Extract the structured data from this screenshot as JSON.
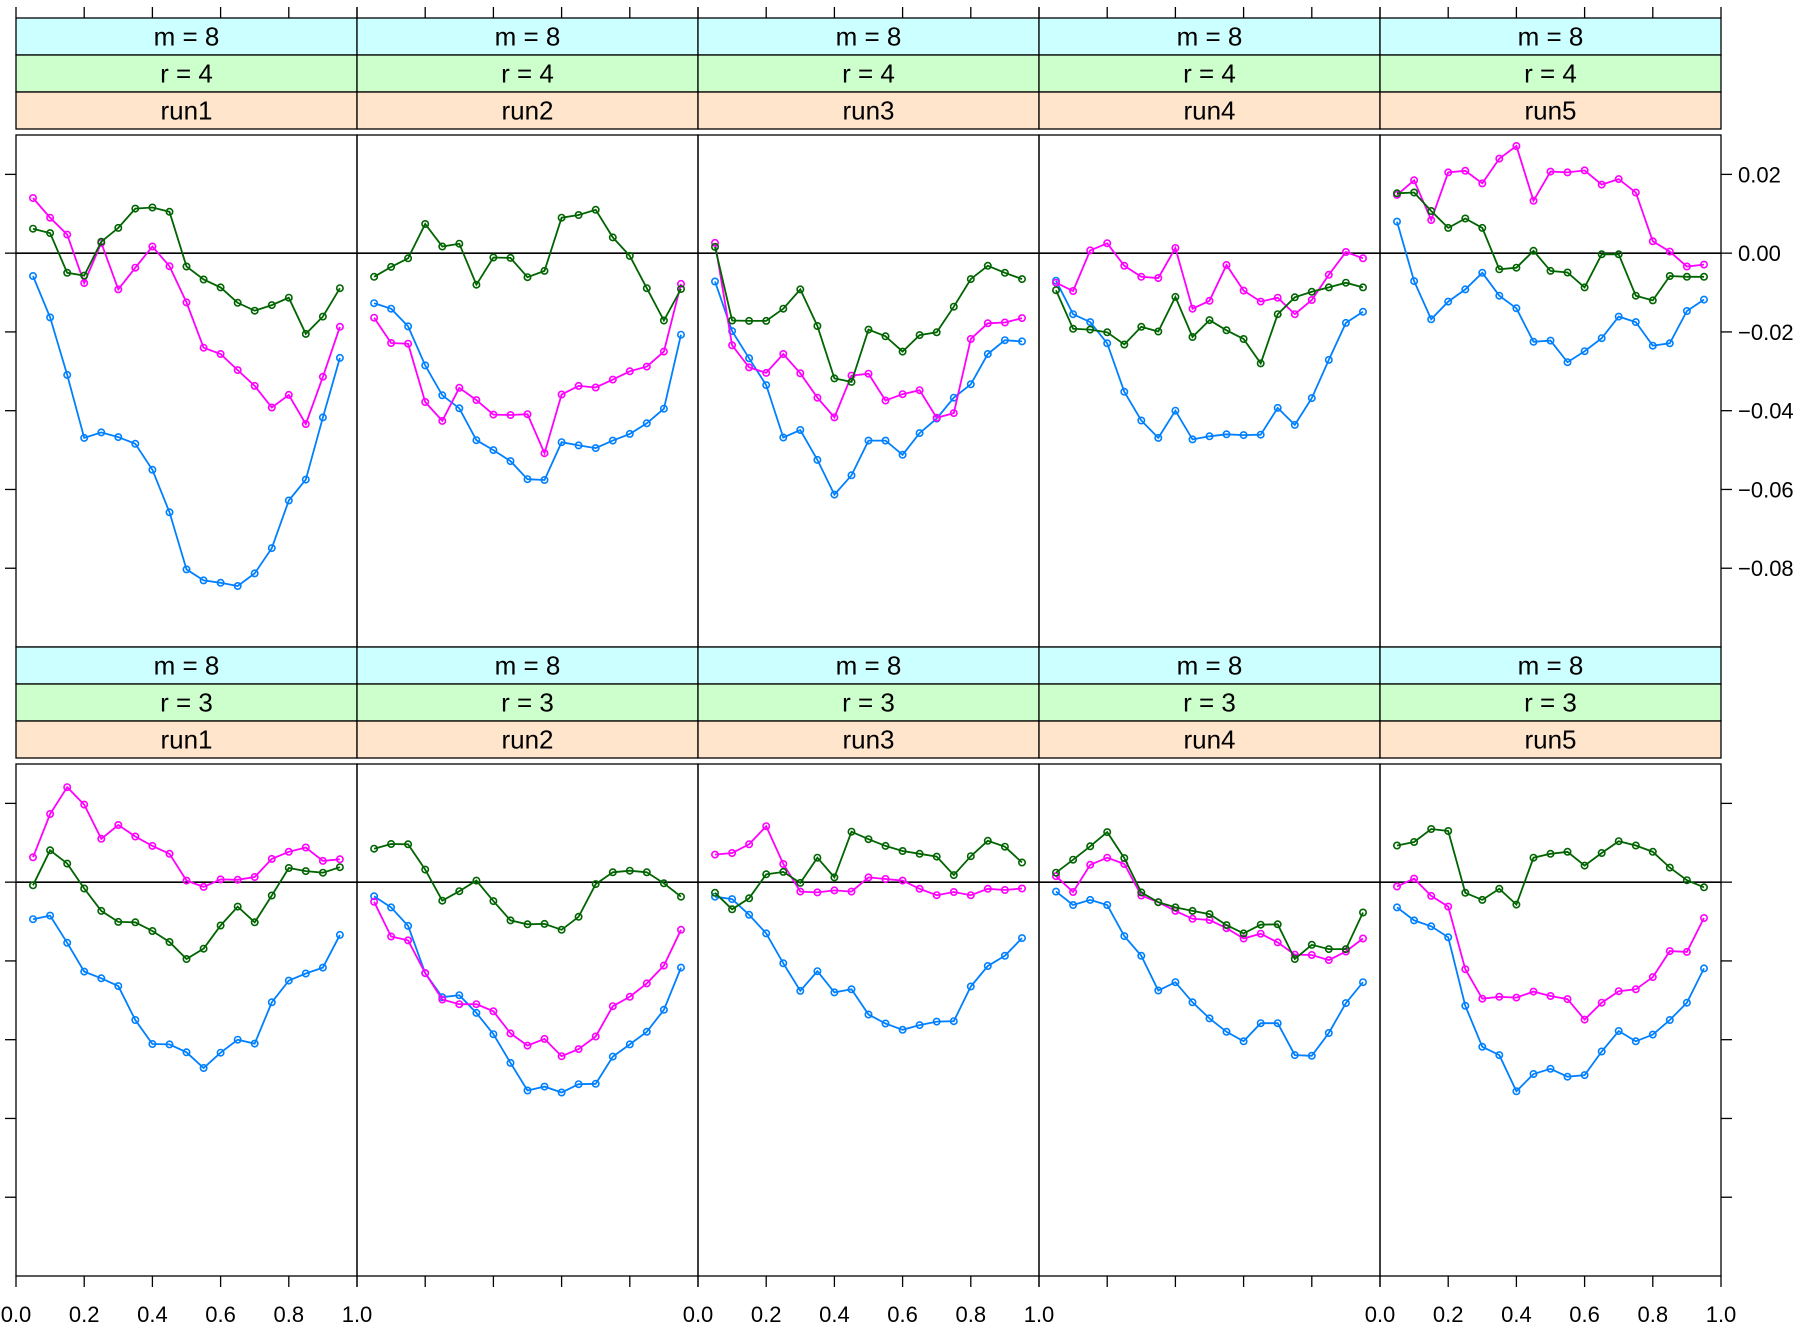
{
  "chart_data": {
    "type": "line",
    "layout": {
      "columns": 5,
      "rows": 2
    },
    "x": [
      0.05,
      0.1,
      0.15,
      0.2,
      0.25,
      0.3,
      0.35,
      0.4,
      0.45,
      0.5,
      0.55,
      0.6,
      0.65,
      0.7,
      0.75,
      0.8,
      0.85,
      0.9,
      0.95
    ],
    "xlim": [
      0,
      1
    ],
    "ylim": [
      -0.1,
      0.03
    ],
    "x_ticks": [
      0.0,
      0.2,
      0.4,
      0.6,
      0.8,
      1.0
    ],
    "x_tick_labels": [
      "0.0",
      "0.2",
      "0.4",
      "0.6",
      "0.8",
      "1.0"
    ],
    "y_ticks": [
      0.02,
      0.0,
      -0.02,
      -0.04,
      -0.06,
      -0.08
    ],
    "y_tick_labels": [
      "0.02",
      "0.00",
      "−0.02",
      "−0.04",
      "−0.06",
      "−0.08"
    ],
    "reference_line_y": 0,
    "series_colors": [
      "#0080ff",
      "#ff00ff",
      "#006400"
    ],
    "strip_colors": {
      "m": "#ccffff",
      "r": "#ccffcc",
      "run": "#ffe5cc"
    },
    "panels": [
      {
        "m": "m = 8",
        "r": "r = 4",
        "run": "run1",
        "series": [
          {
            "values": [
              -0.0058,
              -0.0163,
              -0.0309,
              -0.0469,
              -0.0455,
              -0.0467,
              -0.0484,
              -0.055,
              -0.0658,
              -0.0803,
              -0.0831,
              -0.0837,
              -0.0845,
              -0.0813,
              -0.0749,
              -0.0628,
              -0.0575,
              -0.0417,
              -0.0266
            ]
          },
          {
            "values": [
              0.014,
              0.009,
              0.0047,
              -0.0076,
              0.0026,
              -0.0092,
              -0.0037,
              0.0017,
              -0.0033,
              -0.0125,
              -0.024,
              -0.0256,
              -0.0297,
              -0.0337,
              -0.0392,
              -0.036,
              -0.0434,
              -0.0314,
              -0.0187
            ]
          },
          {
            "values": [
              0.0062,
              0.0051,
              -0.005,
              -0.0057,
              0.0029,
              0.0064,
              0.0113,
              0.0116,
              0.0105,
              -0.0034,
              -0.0067,
              -0.0087,
              -0.0126,
              -0.0146,
              -0.0132,
              -0.0113,
              -0.0205,
              -0.0161,
              -0.0089
            ]
          }
        ]
      },
      {
        "m": "m = 8",
        "r": "r = 4",
        "run": "run2",
        "series": [
          {
            "values": [
              -0.0127,
              -0.0141,
              -0.0186,
              -0.0285,
              -0.0361,
              -0.0394,
              -0.0475,
              -0.05,
              -0.0528,
              -0.0574,
              -0.0576,
              -0.048,
              -0.0488,
              -0.0495,
              -0.0476,
              -0.0459,
              -0.0432,
              -0.0395,
              -0.0207
            ]
          },
          {
            "values": [
              -0.0164,
              -0.0228,
              -0.023,
              -0.0378,
              -0.0426,
              -0.0342,
              -0.0373,
              -0.041,
              -0.0411,
              -0.0409,
              -0.0508,
              -0.0359,
              -0.0337,
              -0.0341,
              -0.0321,
              -0.03,
              -0.0288,
              -0.025,
              -0.0078
            ]
          },
          {
            "values": [
              -0.006,
              -0.0035,
              -0.0013,
              0.0074,
              0.0017,
              0.0024,
              -0.008,
              -0.0011,
              -0.0012,
              -0.0061,
              -0.0045,
              0.009,
              0.0097,
              0.011,
              0.004,
              -0.0007,
              -0.0089,
              -0.0171,
              -0.0091
            ]
          }
        ]
      },
      {
        "m": "m = 8",
        "r": "r = 4",
        "run": "run3",
        "series": [
          {
            "values": [
              -0.0072,
              -0.0198,
              -0.0267,
              -0.0335,
              -0.0468,
              -0.0449,
              -0.0525,
              -0.0613,
              -0.0564,
              -0.0476,
              -0.0476,
              -0.0512,
              -0.0457,
              -0.042,
              -0.0367,
              -0.0333,
              -0.0256,
              -0.0221,
              -0.0224
            ]
          },
          {
            "values": [
              0.0026,
              -0.0234,
              -0.029,
              -0.0304,
              -0.0256,
              -0.0305,
              -0.0367,
              -0.0417,
              -0.0311,
              -0.0306,
              -0.0374,
              -0.0358,
              -0.0348,
              -0.0418,
              -0.0406,
              -0.0218,
              -0.0178,
              -0.0176,
              -0.0165
            ]
          },
          {
            "values": [
              0.0016,
              -0.0171,
              -0.0172,
              -0.0172,
              -0.0141,
              -0.0092,
              -0.0185,
              -0.0318,
              -0.0327,
              -0.0194,
              -0.0211,
              -0.025,
              -0.0208,
              -0.0201,
              -0.0136,
              -0.0066,
              -0.0032,
              -0.005,
              -0.0066
            ]
          }
        ]
      },
      {
        "m": "m = 8",
        "r": "r = 4",
        "run": "run4",
        "series": [
          {
            "values": [
              -0.007,
              -0.0155,
              -0.0175,
              -0.0229,
              -0.0352,
              -0.0425,
              -0.0469,
              -0.04,
              -0.0473,
              -0.0465,
              -0.046,
              -0.0462,
              -0.0461,
              -0.0393,
              -0.0436,
              -0.0368,
              -0.0271,
              -0.0177,
              -0.0149
            ]
          },
          {
            "values": [
              -0.0075,
              -0.0096,
              0.0007,
              0.0025,
              -0.0032,
              -0.006,
              -0.0063,
              0.0013,
              -0.0141,
              -0.0121,
              -0.003,
              -0.0095,
              -0.0123,
              -0.0113,
              -0.0155,
              -0.0119,
              -0.0055,
              0.0003,
              -0.0013
            ]
          },
          {
            "values": [
              -0.0094,
              -0.0192,
              -0.0194,
              -0.0201,
              -0.0232,
              -0.0187,
              -0.0199,
              -0.0111,
              -0.0213,
              -0.017,
              -0.0196,
              -0.0218,
              -0.028,
              -0.0155,
              -0.0112,
              -0.0098,
              -0.0087,
              -0.0075,
              -0.0087
            ]
          }
        ]
      },
      {
        "m": "m = 8",
        "r": "r = 4",
        "run": "run5",
        "series": [
          {
            "values": [
              0.008,
              -0.0071,
              -0.0168,
              -0.0123,
              -0.0092,
              -0.005,
              -0.0108,
              -0.014,
              -0.0225,
              -0.0222,
              -0.0277,
              -0.0249,
              -0.0216,
              -0.0161,
              -0.0175,
              -0.0235,
              -0.0229,
              -0.0147,
              -0.0118
            ]
          },
          {
            "values": [
              0.0148,
              0.0185,
              0.0084,
              0.0205,
              0.0209,
              0.0177,
              0.024,
              0.0272,
              0.0133,
              0.0207,
              0.0205,
              0.021,
              0.0174,
              0.0188,
              0.0154,
              0.003,
              0.0004,
              -0.0034,
              -0.0029
            ]
          },
          {
            "values": [
              0.0152,
              0.0154,
              0.0107,
              0.0064,
              0.0088,
              0.0064,
              -0.0041,
              -0.0037,
              0.0006,
              -0.0045,
              -0.0049,
              -0.0087,
              -0.0003,
              -0.0003,
              -0.0108,
              -0.012,
              -0.0058,
              -0.006,
              -0.006
            ]
          }
        ]
      },
      {
        "m": "m = 8",
        "r": "r = 3",
        "run": "run1",
        "series": [
          {
            "values": [
              -0.0094,
              -0.0085,
              -0.0154,
              -0.0227,
              -0.0244,
              -0.0264,
              -0.035,
              -0.0411,
              -0.0412,
              -0.0432,
              -0.0472,
              -0.0433,
              -0.04,
              -0.041,
              -0.0305,
              -0.025,
              -0.0232,
              -0.0217,
              -0.0134
            ]
          },
          {
            "values": [
              0.0063,
              0.0173,
              0.0241,
              0.0197,
              0.011,
              0.0145,
              0.0116,
              0.0092,
              0.0072,
              0.0004,
              -0.0012,
              0.0007,
              0.0006,
              0.0013,
              0.0059,
              0.0077,
              0.0088,
              0.0054,
              0.0058
            ]
          },
          {
            "values": [
              -0.0008,
              0.0081,
              0.0047,
              -0.0016,
              -0.0073,
              -0.0101,
              -0.0102,
              -0.0124,
              -0.0152,
              -0.0195,
              -0.0169,
              -0.011,
              -0.0062,
              -0.0102,
              -0.0034,
              0.0036,
              0.0028,
              0.0024,
              0.0038
            ]
          }
        ]
      },
      {
        "m": "m = 8",
        "r": "r = 3",
        "run": "run2",
        "series": [
          {
            "values": [
              -0.0036,
              -0.0064,
              -0.0111,
              -0.0231,
              -0.0292,
              -0.0287,
              -0.0332,
              -0.0386,
              -0.0459,
              -0.0529,
              -0.0519,
              -0.0534,
              -0.0513,
              -0.0512,
              -0.0443,
              -0.0412,
              -0.038,
              -0.0324,
              -0.0217
            ]
          },
          {
            "values": [
              -0.005,
              -0.0138,
              -0.0148,
              -0.0231,
              -0.0298,
              -0.031,
              -0.031,
              -0.0328,
              -0.0384,
              -0.0415,
              -0.0398,
              -0.0442,
              -0.0424,
              -0.0392,
              -0.0315,
              -0.0291,
              -0.0257,
              -0.0212,
              -0.0121
            ]
          },
          {
            "values": [
              0.0085,
              0.0097,
              0.0096,
              0.0032,
              -0.0047,
              -0.0023,
              0.0004,
              -0.0048,
              -0.0097,
              -0.0107,
              -0.0106,
              -0.0121,
              -0.0088,
              -0.0005,
              0.0025,
              0.0029,
              0.0025,
              -0.0003,
              -0.0037
            ]
          }
        ]
      },
      {
        "m": "m = 8",
        "r": "r = 3",
        "run": "run3",
        "series": [
          {
            "values": [
              -0.0037,
              -0.0043,
              -0.0083,
              -0.013,
              -0.0206,
              -0.0276,
              -0.0226,
              -0.028,
              -0.0272,
              -0.0336,
              -0.0359,
              -0.0375,
              -0.0363,
              -0.0354,
              -0.0353,
              -0.0265,
              -0.0213,
              -0.0187,
              -0.0142
            ]
          },
          {
            "values": [
              0.007,
              0.0074,
              0.0096,
              0.0142,
              0.0046,
              -0.0024,
              -0.0026,
              -0.0021,
              -0.0024,
              0.0012,
              0.0008,
              0.0004,
              -0.0017,
              -0.0033,
              -0.0025,
              -0.0033,
              -0.0017,
              -0.002,
              -0.0016
            ]
          },
          {
            "values": [
              -0.0027,
              -0.0069,
              -0.0041,
              0.002,
              0.0026,
              -0.0002,
              0.0062,
              0.0012,
              0.0128,
              0.0109,
              0.0092,
              0.0079,
              0.0072,
              0.0065,
              0.0018,
              0.0066,
              0.0105,
              0.009,
              0.005
            ]
          }
        ]
      },
      {
        "m": "m = 8",
        "r": "r = 3",
        "run": "run4",
        "series": [
          {
            "values": [
              -0.0024,
              -0.0058,
              -0.0045,
              -0.0058,
              -0.0137,
              -0.0187,
              -0.0275,
              -0.0254,
              -0.0305,
              -0.0346,
              -0.038,
              -0.0404,
              -0.0358,
              -0.0358,
              -0.0439,
              -0.0441,
              -0.0383,
              -0.0307,
              -0.0254
            ]
          },
          {
            "values": [
              0.0015,
              -0.0025,
              0.0044,
              0.0062,
              0.0046,
              -0.0034,
              -0.0051,
              -0.0073,
              -0.0093,
              -0.0096,
              -0.0117,
              -0.0143,
              -0.0131,
              -0.0153,
              -0.0184,
              -0.0185,
              -0.0198,
              -0.0176,
              -0.0143
            ]
          },
          {
            "values": [
              0.0024,
              0.0057,
              0.0091,
              0.0127,
              0.0061,
              -0.0026,
              -0.0051,
              -0.0064,
              -0.0073,
              -0.0081,
              -0.0109,
              -0.013,
              -0.0108,
              -0.0107,
              -0.0195,
              -0.0159,
              -0.017,
              -0.017,
              -0.0077
            ]
          }
        ]
      },
      {
        "m": "m = 8",
        "r": "r = 3",
        "run": "run5",
        "series": [
          {
            "values": [
              -0.0064,
              -0.0097,
              -0.0112,
              -0.014,
              -0.0314,
              -0.0418,
              -0.0439,
              -0.0531,
              -0.0487,
              -0.0474,
              -0.0494,
              -0.049,
              -0.043,
              -0.0378,
              -0.0404,
              -0.0387,
              -0.035,
              -0.0306,
              -0.0219
            ]
          },
          {
            "values": [
              -0.0011,
              0.0009,
              -0.0035,
              -0.0062,
              -0.0221,
              -0.0296,
              -0.0291,
              -0.0293,
              -0.0278,
              -0.0289,
              -0.0297,
              -0.0349,
              -0.0306,
              -0.0277,
              -0.0272,
              -0.0241,
              -0.0175,
              -0.0177,
              -0.0091
            ]
          },
          {
            "values": [
              0.0093,
              0.0102,
              0.0135,
              0.013,
              -0.0027,
              -0.0045,
              -0.0017,
              -0.0057,
              0.0062,
              0.0072,
              0.0077,
              0.0042,
              0.0074,
              0.0104,
              0.0093,
              0.0077,
              0.0037,
              0.0005,
              -0.0013
            ]
          }
        ]
      }
    ]
  }
}
